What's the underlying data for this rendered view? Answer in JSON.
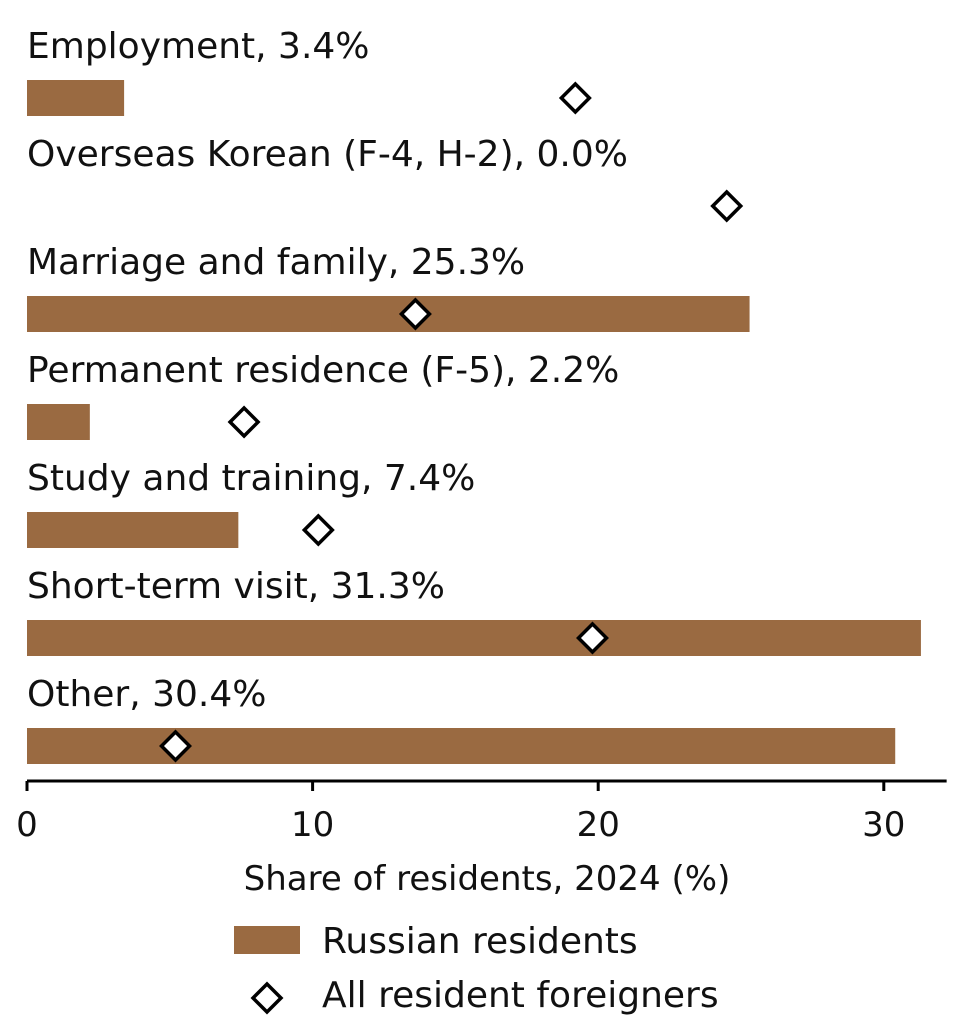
{
  "chart_data": {
    "type": "bar",
    "orientation": "horizontal",
    "categories": [
      "Employment, 3.4%",
      "Overseas Korean (F-4, H-2), 0.0%",
      "Marriage and family, 25.3%",
      "Permanent residence (F-5), 2.2%",
      "Study and training, 7.4%",
      "Short-term visit, 31.3%",
      "Other, 30.4%"
    ],
    "series": [
      {
        "name": "Russian residents",
        "mark": "bar",
        "color": "#9A6A41",
        "values": [
          3.4,
          0.0,
          25.3,
          2.2,
          7.4,
          31.3,
          30.4
        ]
      },
      {
        "name": "All resident foreigners",
        "mark": "diamond",
        "color": "#ffffff",
        "values": [
          19.2,
          24.5,
          13.6,
          7.6,
          10.2,
          19.8,
          5.2
        ]
      }
    ],
    "xlabel": "Share of residents, 2024 (%)",
    "ylabel": "",
    "xlim": [
      0,
      32.2
    ],
    "xticks": [
      "0",
      "10",
      "20",
      "30"
    ],
    "grid": false,
    "legend_position": "bottom-center"
  }
}
